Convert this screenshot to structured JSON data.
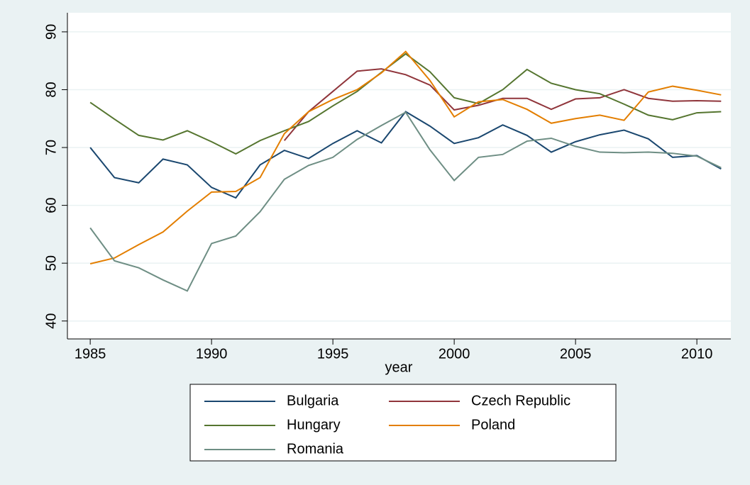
{
  "chart_data": {
    "type": "line",
    "x": [
      1985,
      1986,
      1987,
      1988,
      1989,
      1990,
      1991,
      1992,
      1993,
      1994,
      1995,
      1996,
      1997,
      1998,
      1999,
      2000,
      2001,
      2002,
      2003,
      2004,
      2005,
      2006,
      2007,
      2008,
      2009,
      2010,
      2011
    ],
    "series": [
      {
        "name": "Bulgaria",
        "color": "#1a476f",
        "values": [
          70.0,
          64.8,
          63.9,
          68.0,
          67.0,
          63.1,
          61.3,
          67.0,
          69.5,
          68.1,
          70.7,
          72.9,
          70.8,
          76.2,
          73.7,
          70.7,
          71.7,
          73.9,
          72.1,
          69.2,
          71.0,
          72.2,
          73.0,
          71.5,
          68.3,
          68.6,
          66.3
        ]
      },
      {
        "name": "Czech Republic",
        "color": "#90353b",
        "values": [
          null,
          null,
          null,
          null,
          null,
          null,
          null,
          null,
          71.2,
          76.2,
          79.7,
          83.2,
          83.6,
          82.6,
          80.8,
          76.5,
          77.3,
          78.5,
          78.5,
          76.6,
          78.4,
          78.6,
          80.0,
          78.5,
          78.0,
          78.1,
          78.0
        ]
      },
      {
        "name": "Hungary",
        "color": "#55752f",
        "values": [
          77.8,
          74.9,
          72.1,
          71.3,
          72.9,
          71.0,
          68.9,
          71.2,
          72.9,
          74.5,
          77.2,
          79.7,
          83.0,
          86.2,
          83.1,
          78.6,
          77.6,
          80.0,
          83.5,
          81.1,
          80.0,
          79.3,
          77.5,
          75.6,
          74.8,
          76.0,
          76.2
        ]
      },
      {
        "name": "Poland",
        "color": "#e37e00",
        "values": [
          49.9,
          50.9,
          53.2,
          55.4,
          59.0,
          62.3,
          62.4,
          64.8,
          72.4,
          76.2,
          78.3,
          80.0,
          82.9,
          86.6,
          81.6,
          75.3,
          77.9,
          78.3,
          76.6,
          74.2,
          75.0,
          75.6,
          74.7,
          79.6,
          80.6,
          79.9,
          79.1
        ]
      },
      {
        "name": "Romania",
        "color": "#6e8e84",
        "values": [
          56.1,
          50.4,
          49.2,
          47.1,
          45.2,
          53.4,
          54.7,
          58.9,
          64.5,
          66.9,
          68.3,
          71.4,
          73.8,
          76.1,
          69.6,
          64.3,
          68.3,
          68.8,
          71.1,
          71.6,
          70.2,
          69.2,
          69.1,
          69.2,
          69.0,
          68.5,
          66.5
        ]
      }
    ],
    "x_label": "year",
    "xlim": [
      1984.06,
      2011.4
    ],
    "xticks": [
      1985,
      1990,
      1995,
      2000,
      2005,
      2010
    ],
    "ylim": [
      36.9,
      93.3
    ],
    "yticks": [
      40,
      50,
      60,
      70,
      80,
      90
    ],
    "grid": true
  }
}
